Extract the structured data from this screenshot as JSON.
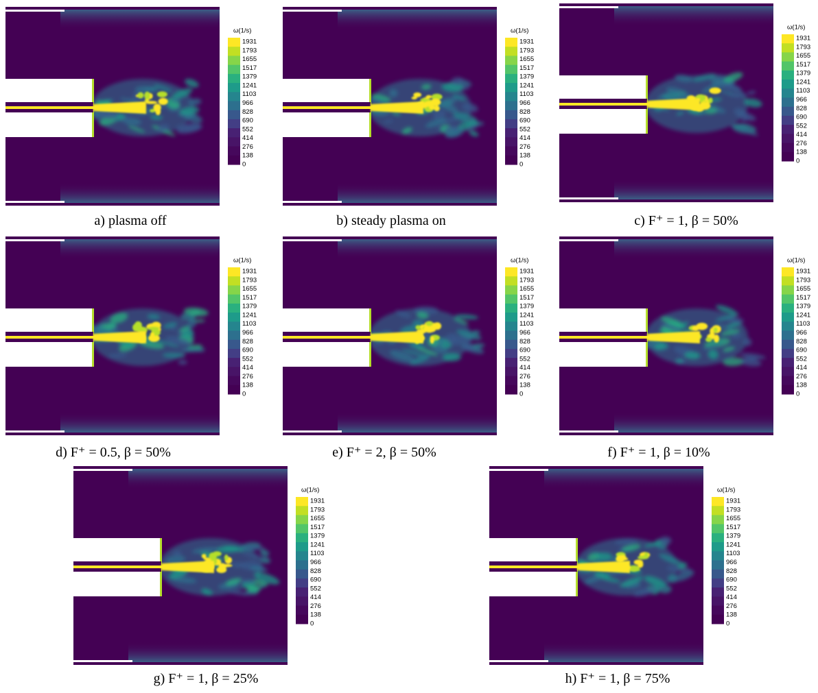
{
  "colorbar": {
    "title": "ω(1/s)",
    "ticks": [
      1931,
      1793,
      1655,
      1517,
      1379,
      1241,
      1103,
      966,
      828,
      690,
      552,
      414,
      276,
      138,
      0
    ]
  },
  "panels": [
    {
      "caption": "a) plasma off"
    },
    {
      "caption": "b) steady plasma on"
    },
    {
      "caption": "c) F⁺ = 1, β = 50%"
    },
    {
      "caption": "d) F⁺ = 0.5, β = 50%"
    },
    {
      "caption": "e) F⁺ = 2, β = 50%"
    },
    {
      "caption": "f) F⁺ = 1, β = 10%"
    },
    {
      "caption": "g) F⁺ = 1, β = 25%"
    },
    {
      "caption": "h) F⁺ = 1, β = 75%"
    }
  ]
}
